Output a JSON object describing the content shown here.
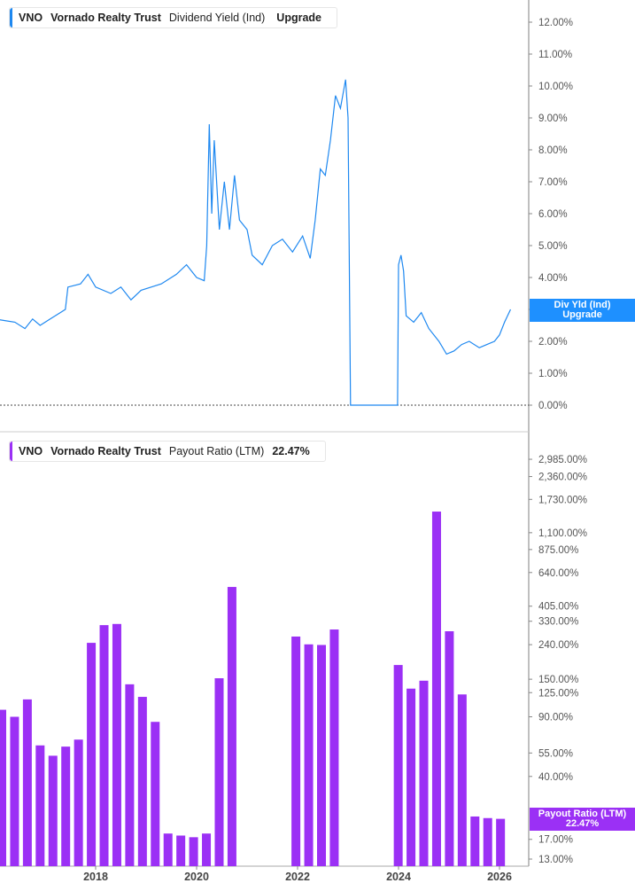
{
  "top_legend": {
    "ticker": "VNO",
    "company": "Vornado Realty Trust",
    "metric": "Dividend Yield (Ind)",
    "value": "Upgrade"
  },
  "bottom_legend": {
    "ticker": "VNO",
    "company": "Vornado Realty Trust",
    "metric": "Payout Ratio (LTM)",
    "value": "22.47%"
  },
  "top_badge": {
    "line1": "Div Yld (Ind)",
    "line2": "Upgrade"
  },
  "bottom_badge": {
    "line1": "Payout Ratio (LTM)",
    "line2": "22.47%"
  },
  "colors": {
    "yield": "#1e88f0",
    "payout": "#9b30f5",
    "badge_blue": "#1e90ff"
  },
  "chart_data": [
    {
      "type": "line",
      "series": [
        {
          "name": "Dividend Yield (Ind)",
          "x": [
            2016.0,
            2016.2,
            2016.4,
            2016.6,
            2016.75,
            2016.9,
            2017.1,
            2017.3,
            2017.4,
            2017.45,
            2017.7,
            2017.85,
            2018.0,
            2018.3,
            2018.5,
            2018.7,
            2018.9,
            2019.1,
            2019.3,
            2019.6,
            2019.8,
            2020.0,
            2020.15,
            2020.2,
            2020.25,
            2020.3,
            2020.35,
            2020.45,
            2020.55,
            2020.65,
            2020.75,
            2020.85,
            2021.0,
            2021.1,
            2021.3,
            2021.5,
            2021.7,
            2021.9,
            2022.1,
            2022.25,
            2022.35,
            2022.45,
            2022.55,
            2022.65,
            2022.75,
            2022.85,
            2022.95,
            2023.0,
            2023.05,
            2023.98,
            2024.0,
            2024.05,
            2024.1,
            2024.15,
            2024.3,
            2024.45,
            2024.6,
            2024.8,
            2024.95,
            2025.1,
            2025.25,
            2025.4,
            2025.6,
            2025.75,
            2025.9,
            2026.0,
            2026.1,
            2026.22
          ],
          "y": [
            2.7,
            2.65,
            2.6,
            2.4,
            2.7,
            2.5,
            2.7,
            2.9,
            3.0,
            3.7,
            3.8,
            4.1,
            3.7,
            3.5,
            3.7,
            3.3,
            3.6,
            3.7,
            3.8,
            4.1,
            4.4,
            4.0,
            3.9,
            5.0,
            8.8,
            6.0,
            8.3,
            5.5,
            7.0,
            5.5,
            7.2,
            5.8,
            5.5,
            4.7,
            4.4,
            5.0,
            5.2,
            4.8,
            5.3,
            4.6,
            5.8,
            7.4,
            7.2,
            8.3,
            9.7,
            9.3,
            10.2,
            9.0,
            0.0,
            0.0,
            4.4,
            4.7,
            4.2,
            2.8,
            2.6,
            2.9,
            2.4,
            2.0,
            1.6,
            1.7,
            1.9,
            2.0,
            1.8,
            1.9,
            2.0,
            2.2,
            2.6,
            3.0
          ]
        }
      ],
      "yticks": [
        "12.00%",
        "11.00%",
        "10.00%",
        "9.00%",
        "8.00%",
        "7.00%",
        "6.00%",
        "5.00%",
        "4.00%",
        "3.00%",
        "2.00%",
        "1.00%",
        "0.00%"
      ],
      "ylim": [
        0,
        12
      ],
      "y_unit": "%"
    },
    {
      "type": "bar",
      "yscale": "log",
      "categories": [
        "2016Q1",
        "2016Q2",
        "2016Q3",
        "2016Q4",
        "2017Q1",
        "2017Q2",
        "2017Q3",
        "2017Q4",
        "2018Q1",
        "2018Q2",
        "2018Q3",
        "2018Q4",
        "2019Q1",
        "2019Q2",
        "2019Q3",
        "2019Q4",
        "2020Q1",
        "2020Q2",
        "2020Q3",
        "2020Q4",
        "2021Q1",
        "2021Q2",
        "2021Q3",
        "2021Q4",
        "2022Q1",
        "2022Q2",
        "2022Q3",
        "2022Q4",
        "2023Q1",
        "2023Q2",
        "2023Q3",
        "2023Q4",
        "2024Q1",
        "2024Q2",
        "2024Q3",
        "2024Q4",
        "2025Q1",
        "2025Q2",
        "2025Q3",
        "2025Q4"
      ],
      "values": [
        99,
        90,
        114,
        61,
        53,
        60,
        66,
        246,
        313,
        318,
        140,
        118,
        84,
        18.4,
        17.9,
        17.5,
        18.4,
        152,
        526,
        null,
        null,
        null,
        null,
        268,
        241,
        239,
        295,
        null,
        null,
        null,
        null,
        182,
        132,
        147,
        1466,
        288,
        122,
        23.2,
        22.7,
        22.47
      ],
      "yticks": [
        "2,985.00%",
        "2,360.00%",
        "1,730.00%",
        "1,100.00%",
        "875.00%",
        "640.00%",
        "405.00%",
        "330.00%",
        "240.00%",
        "150.00%",
        "125.00%",
        "90.00%",
        "55.00%",
        "40.00%",
        "17.00%",
        "13.00%"
      ],
      "ytick_values": [
        2985,
        2360,
        1730,
        1100,
        875,
        640,
        405,
        330,
        240,
        150,
        125,
        90,
        55,
        40,
        17,
        13
      ],
      "ylim": [
        13,
        2985
      ]
    }
  ],
  "xticks": [
    "2018",
    "2020",
    "2022",
    "2024",
    "2026"
  ],
  "xtick_years": [
    2018,
    2020,
    2022,
    2024,
    2026
  ]
}
